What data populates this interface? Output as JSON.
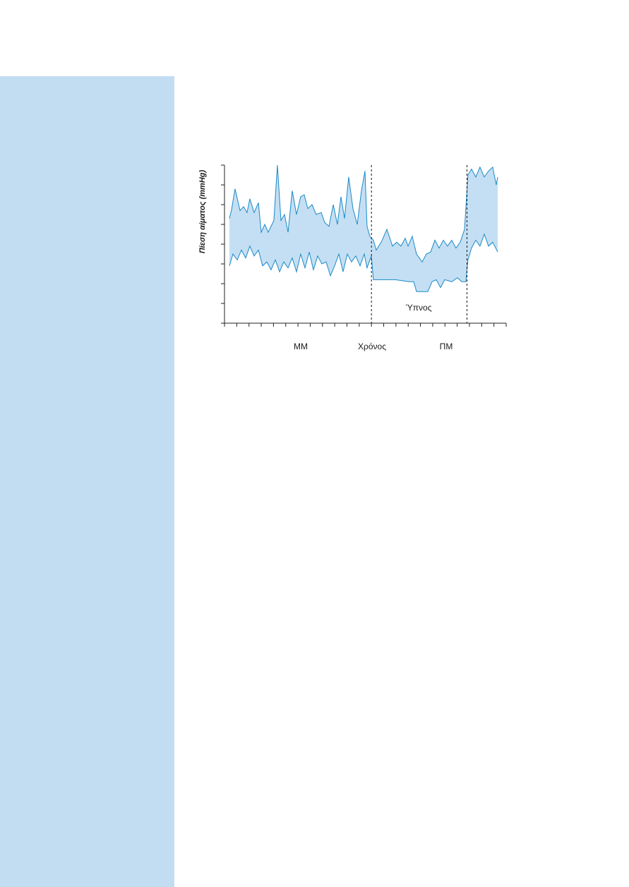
{
  "chart_data": {
    "type": "range-area",
    "ylabel": "Πίεση αίματος (mmHg)",
    "xlabel": "Χρόνος",
    "annotations": [
      "ΜΜ",
      "ΠΜ",
      "Ύπνος"
    ],
    "vlines": [
      12,
      19.8
    ],
    "xlim": [
      0,
      23
    ],
    "xticks": [
      0,
      1,
      2,
      3,
      4,
      5,
      6,
      7,
      8,
      9,
      10,
      11,
      12,
      13,
      14,
      15,
      16,
      17,
      18,
      19,
      20,
      21,
      22,
      23
    ],
    "ylim": [
      0,
      8
    ],
    "yticks": [
      0,
      1,
      2,
      3,
      4,
      5,
      6,
      7,
      8
    ],
    "color": "#1a8ac8",
    "fill": "#c4dff3",
    "series": [
      {
        "x": [
          0.4,
          0.58,
          0.86,
          1.27,
          1.56,
          1.84,
          2.07,
          2.42,
          2.77,
          3.0,
          3.29,
          3.57,
          4.03,
          4.32,
          4.61,
          4.9,
          5.19,
          5.53,
          5.88,
          6.22,
          6.51,
          6.8,
          7.15,
          7.49,
          7.9,
          8.18,
          8.53,
          8.88,
          9.22,
          9.51,
          9.8,
          10.14,
          10.49,
          10.84,
          11.18,
          11.47,
          11.64,
          11.87,
          12.16,
          12.39,
          12.8,
          13.26,
          13.72,
          14.06,
          14.41,
          14.76,
          14.99,
          15.33,
          15.68,
          16.14,
          16.48,
          16.83,
          17.18,
          17.52,
          17.87,
          18.21,
          18.56,
          18.9,
          19.25,
          19.6,
          19.88,
          20.17,
          20.52,
          20.86,
          21.21,
          21.56,
          21.9,
          22.19,
          22.31
        ],
        "values": [
          5.3,
          5.75,
          6.8,
          5.7,
          5.9,
          5.6,
          6.3,
          5.6,
          6.1,
          4.6,
          5.0,
          4.6,
          5.2,
          8.0,
          5.2,
          5.5,
          4.6,
          6.7,
          5.5,
          6.4,
          6.5,
          5.8,
          6.0,
          5.5,
          5.6,
          5.1,
          4.9,
          6.0,
          5.0,
          6.4,
          5.3,
          7.4,
          5.8,
          5.0,
          6.7,
          7.7,
          4.9,
          4.4,
          4.2,
          3.7,
          4.1,
          4.75,
          3.9,
          4.1,
          3.9,
          4.3,
          3.9,
          4.4,
          3.5,
          3.1,
          3.5,
          3.6,
          4.2,
          3.8,
          4.2,
          3.9,
          4.2,
          3.8,
          4.1,
          4.75,
          7.5,
          7.8,
          7.4,
          7.9,
          7.4,
          7.7,
          7.9,
          7.0,
          7.4
        ]
      },
      {
        "x": [
          0.4,
          0.69,
          1.04,
          1.38,
          1.73,
          2.07,
          2.42,
          2.77,
          3.11,
          3.46,
          3.8,
          4.15,
          4.5,
          4.84,
          5.19,
          5.53,
          5.88,
          6.22,
          6.57,
          6.92,
          7.26,
          7.61,
          7.95,
          8.3,
          8.65,
          8.99,
          9.34,
          9.68,
          10.03,
          10.37,
          10.72,
          11.07,
          11.41,
          11.64,
          11.99,
          12.16,
          12.8,
          13.95,
          15.1,
          15.45,
          15.68,
          16.14,
          16.6,
          16.95,
          17.29,
          17.64,
          17.98,
          18.56,
          19.02,
          19.37,
          19.71,
          19.88,
          20.17,
          20.52,
          20.86,
          21.21,
          21.56,
          21.9,
          22.31
        ],
        "values": [
          2.9,
          3.5,
          3.2,
          3.7,
          3.3,
          3.9,
          3.4,
          3.7,
          2.9,
          3.1,
          2.7,
          3.2,
          2.6,
          3.1,
          2.8,
          3.3,
          2.6,
          3.5,
          2.8,
          3.6,
          2.7,
          3.4,
          3.0,
          3.1,
          2.4,
          2.9,
          3.5,
          2.6,
          3.5,
          3.1,
          3.4,
          2.9,
          3.5,
          2.8,
          3.4,
          2.2,
          2.2,
          2.2,
          2.1,
          2.1,
          1.6,
          1.6,
          1.6,
          2.1,
          2.2,
          1.8,
          2.2,
          2.1,
          2.3,
          2.1,
          2.1,
          3.2,
          3.8,
          4.2,
          3.9,
          4.5,
          3.9,
          4.1,
          3.6
        ]
      }
    ]
  }
}
